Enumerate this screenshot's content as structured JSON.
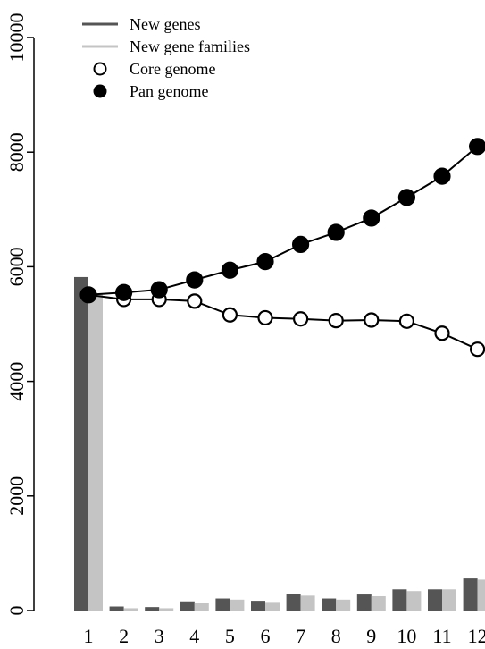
{
  "chart_data": {
    "type": "bar",
    "categories": [
      "1",
      "2",
      "3",
      "4",
      "5",
      "6",
      "7",
      "8",
      "9",
      "10",
      "11",
      "12"
    ],
    "ylim": [
      0,
      10000
    ],
    "yticks": [
      0,
      2000,
      4000,
      6000,
      8000,
      10000
    ],
    "legend": {
      "placement": "top-left",
      "entries": [
        "New genes",
        "New gene families",
        "Core genome",
        "Pan genome"
      ]
    },
    "bar_series": [
      {
        "name": "New genes",
        "color": "#555555",
        "values": [
          5820,
          70,
          60,
          160,
          210,
          170,
          290,
          210,
          280,
          370,
          370,
          560
        ]
      },
      {
        "name": "New gene families",
        "color": "#c4c4c4",
        "values": [
          5520,
          40,
          40,
          130,
          190,
          150,
          260,
          190,
          250,
          340,
          370,
          540
        ]
      }
    ],
    "line_series": [
      {
        "name": "Core genome",
        "marker": "open-circle",
        "values": [
          5510,
          5430,
          5430,
          5400,
          5160,
          5110,
          5090,
          5060,
          5070,
          5050,
          4840,
          4560
        ]
      },
      {
        "name": "Pan genome",
        "marker": "filled-circle",
        "values": [
          5510,
          5550,
          5600,
          5770,
          5940,
          6090,
          6390,
          6600,
          6850,
          7210,
          7580,
          8100
        ]
      }
    ]
  }
}
